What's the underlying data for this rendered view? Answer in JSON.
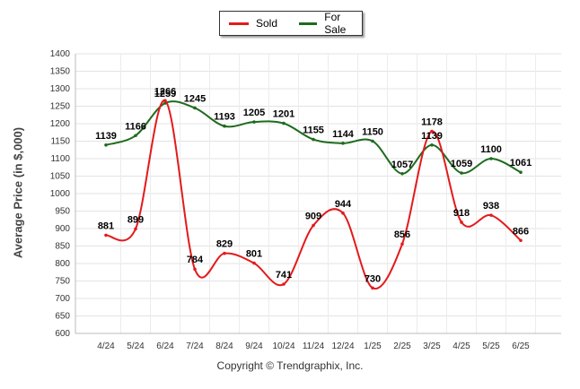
{
  "chart_data": {
    "type": "line",
    "ylabel": "Average Price (in $,000)",
    "ylim": [
      600,
      1400
    ],
    "y_ticks": [
      600,
      650,
      700,
      750,
      800,
      850,
      900,
      950,
      1000,
      1050,
      1100,
      1150,
      1200,
      1250,
      1300,
      1350,
      1400
    ],
    "categories": [
      "4/24",
      "5/24",
      "6/24",
      "7/24",
      "8/24",
      "9/24",
      "10/24",
      "11/24",
      "12/24",
      "1/25",
      "2/25",
      "3/25",
      "4/25",
      "5/25",
      "6/25"
    ],
    "series": [
      {
        "name": "Sold",
        "color": "#e31a1c",
        "values": [
          881,
          899,
          1266,
          784,
          829,
          801,
          741,
          909,
          944,
          730,
          856,
          1178,
          918,
          938,
          866
        ]
      },
      {
        "name": "For Sale",
        "color": "#1e6b1e",
        "values": [
          1139,
          1166,
          1259,
          1245,
          1193,
          1205,
          1201,
          1155,
          1144,
          1150,
          1057,
          1139,
          1059,
          1100,
          1061
        ]
      }
    ],
    "legend_position": "top-center",
    "grid": true
  },
  "legend": {
    "items": [
      {
        "label": "Sold",
        "color": "#e31a1c"
      },
      {
        "label": "For Sale",
        "color": "#1e6b1e"
      }
    ]
  },
  "footer": {
    "copyright": "Copyright © Trendgraphix, Inc."
  }
}
